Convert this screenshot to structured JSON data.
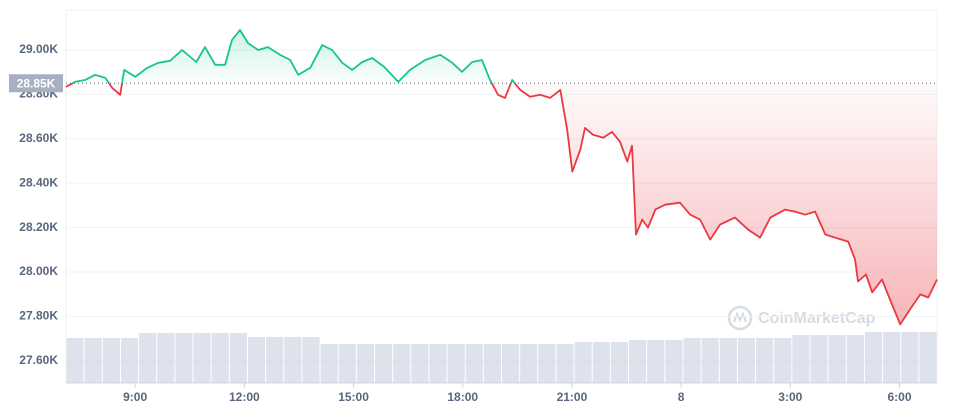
{
  "chart_data": {
    "type": "line",
    "x": [
      7.1,
      7.35,
      7.63,
      7.9,
      8.18,
      8.37,
      8.59,
      8.7,
      9.0,
      9.33,
      9.63,
      9.96,
      10.29,
      10.68,
      10.92,
      11.2,
      11.47,
      11.66,
      11.88,
      12.1,
      12.38,
      12.65,
      12.98,
      13.26,
      13.48,
      13.81,
      14.14,
      14.41,
      14.69,
      14.96,
      15.24,
      15.51,
      15.84,
      16.23,
      16.55,
      16.97,
      17.38,
      17.71,
      17.98,
      18.26,
      18.53,
      18.75,
      18.97,
      19.16,
      19.36,
      19.58,
      19.85,
      20.13,
      20.4,
      20.68,
      20.87,
      21.01,
      21.23,
      21.36,
      21.58,
      21.86,
      22.1,
      22.32,
      22.52,
      22.65,
      22.76,
      22.93,
      23.09,
      23.29,
      23.56,
      23.97,
      24.25,
      24.52,
      24.8,
      25.07,
      25.48,
      25.84,
      26.17,
      26.45,
      26.86,
      27.13,
      27.41,
      27.68,
      27.96,
      28.23,
      28.59,
      28.78,
      28.86,
      29.08,
      29.25,
      29.52,
      29.74,
      30.02,
      30.29,
      30.57,
      30.79,
      31.03
    ],
    "values": [
      28834,
      28856,
      28865,
      28888,
      28874,
      28829,
      28798,
      28910,
      28879,
      28919,
      28942,
      28951,
      29000,
      28946,
      29013,
      28933,
      28933,
      29045,
      29090,
      29031,
      29000,
      29013,
      28978,
      28955,
      28888,
      28919,
      29022,
      29000,
      28942,
      28910,
      28946,
      28964,
      28924,
      28856,
      28910,
      28955,
      28978,
      28942,
      28901,
      28946,
      28955,
      28865,
      28798,
      28784,
      28865,
      28820,
      28789,
      28798,
      28784,
      28820,
      28640,
      28452,
      28551,
      28649,
      28618,
      28605,
      28631,
      28587,
      28497,
      28569,
      28169,
      28236,
      28200,
      28281,
      28303,
      28312,
      28258,
      28236,
      28146,
      28214,
      28245,
      28191,
      28155,
      28245,
      28281,
      28272,
      28258,
      28272,
      28169,
      28155,
      28137,
      28056,
      27957,
      27989,
      27908,
      27966,
      27876,
      27764,
      27832,
      27899,
      27885,
      27966
    ],
    "color_up": "#16c784",
    "color_down": "#ea3943",
    "baseline": {
      "value": 28850,
      "label": "28.85K"
    },
    "xlim": [
      7.1,
      31.03
    ],
    "xticks": [
      {
        "value": 9,
        "label": "9:00"
      },
      {
        "value": 12,
        "label": "12:00"
      },
      {
        "value": 15,
        "label": "15:00"
      },
      {
        "value": 18,
        "label": "18:00"
      },
      {
        "value": 21,
        "label": "21:00"
      },
      {
        "value": 24,
        "label": "8"
      },
      {
        "value": 27,
        "label": "3:00"
      },
      {
        "value": 30,
        "label": "6:00"
      }
    ],
    "ylim": [
      27500,
      29180
    ],
    "yticks": [
      {
        "value": 27600,
        "label": "27.60K"
      },
      {
        "value": 27800,
        "label": "27.80K"
      },
      {
        "value": 28000,
        "label": "28.00K"
      },
      {
        "value": 28200,
        "label": "28.20K"
      },
      {
        "value": 28400,
        "label": "28.40K"
      },
      {
        "value": 28600,
        "label": "28.60K"
      },
      {
        "value": 28800,
        "label": "28.80K"
      },
      {
        "value": 29000,
        "label": "29.00K"
      }
    ],
    "grid": true,
    "volume": {
      "color": "#cfd6e4",
      "values": [
        45,
        45,
        45,
        45,
        50,
        50,
        50,
        50,
        50,
        50,
        46,
        46,
        46,
        46,
        39,
        39,
        39,
        39,
        39,
        39,
        39,
        39,
        39,
        39,
        39,
        39,
        39,
        39,
        41,
        41,
        41,
        43,
        43,
        43,
        45,
        45,
        45,
        45,
        45,
        45,
        48,
        48,
        48,
        48,
        51,
        51,
        51,
        51
      ]
    },
    "watermark": "CoinMarketCap"
  }
}
